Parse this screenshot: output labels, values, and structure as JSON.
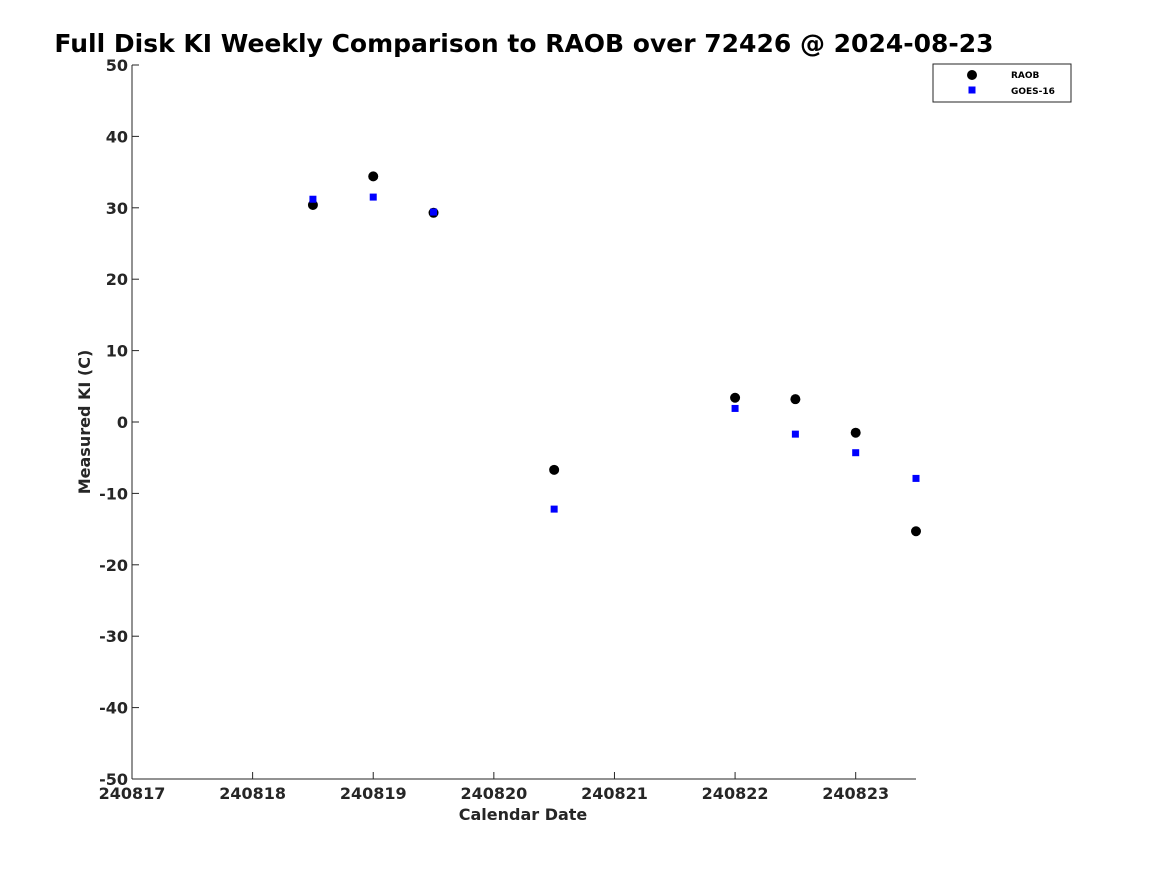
{
  "chart_data": {
    "type": "scatter",
    "title": "Full Disk KI Weekly Comparison to RAOB over 72426 @ 2024-08-23",
    "xlabel": "Calendar Date",
    "ylabel": "Measured KI (C)",
    "xlim": [
      240817,
      240823.5
    ],
    "ylim": [
      -50,
      50
    ],
    "xticks": [
      240817,
      240818,
      240819,
      240820,
      240821,
      240822,
      240823
    ],
    "xtick_labels": [
      "240817",
      "240818",
      "240819",
      "240820",
      "240821",
      "240822",
      "240823"
    ],
    "yticks": [
      -50,
      -40,
      -30,
      -20,
      -10,
      0,
      10,
      20,
      30,
      40,
      50
    ],
    "ytick_labels": [
      "-50",
      "-40",
      "-30",
      "-20",
      "-10",
      "0",
      "10",
      "20",
      "30",
      "40",
      "50"
    ],
    "grid": false,
    "legend_position": "top-right",
    "series": [
      {
        "name": "RAOB",
        "marker": "circle",
        "color": "#000000",
        "x": [
          240818.5,
          240819,
          240819.5,
          240820.5,
          240822,
          240822.5,
          240823,
          240823.5
        ],
        "y": [
          30.4,
          34.4,
          29.3,
          -6.7,
          3.4,
          3.2,
          -1.5,
          -15.3
        ]
      },
      {
        "name": "GOES-16",
        "marker": "square",
        "color": "#0000ff",
        "x": [
          240818.5,
          240819,
          240819.5,
          240820.5,
          240822,
          240822.5,
          240823,
          240823.5
        ],
        "y": [
          31.2,
          31.5,
          29.4,
          -12.2,
          1.9,
          -1.7,
          -4.3,
          -7.9
        ]
      }
    ]
  }
}
